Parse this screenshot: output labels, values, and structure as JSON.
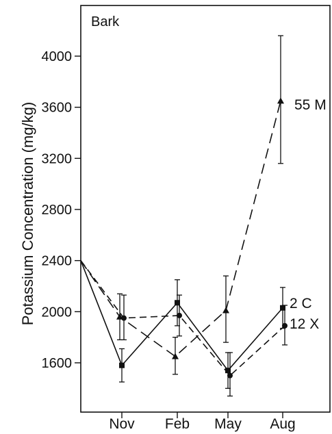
{
  "chart_data": {
    "type": "line",
    "panel_label": "Bark",
    "ylabel": "Potassium Concentration (mg/kg)",
    "xlabel": "",
    "categories": [
      "Nov",
      "Feb",
      "May",
      "Aug"
    ],
    "yticks": [
      1600,
      2000,
      2400,
      2800,
      3200,
      3600,
      4000
    ],
    "ylim": [
      1300,
      4370
    ],
    "grid": false,
    "start_value": 2400,
    "series": [
      {
        "name": "55 M",
        "marker": "triangle",
        "line_style": "long-dash",
        "values": [
          1960,
          1650,
          2010,
          3650
        ],
        "err_low": [
          1780,
          1510,
          1760,
          3160
        ],
        "err_high": [
          2140,
          1800,
          2280,
          4160
        ]
      },
      {
        "name": "2 C",
        "marker": "square",
        "line_style": "solid",
        "values": [
          1580,
          2070,
          1540,
          2030
        ],
        "err_low": [
          1450,
          1890,
          1400,
          1870
        ],
        "err_high": [
          1710,
          2250,
          1680,
          2190
        ]
      },
      {
        "name": "12 X",
        "marker": "circle",
        "line_style": "dash",
        "values": [
          1950,
          1970,
          1500,
          1890
        ],
        "err_low": [
          1780,
          1810,
          1340,
          1740
        ],
        "err_high": [
          2130,
          2130,
          1680,
          2050
        ]
      }
    ]
  }
}
